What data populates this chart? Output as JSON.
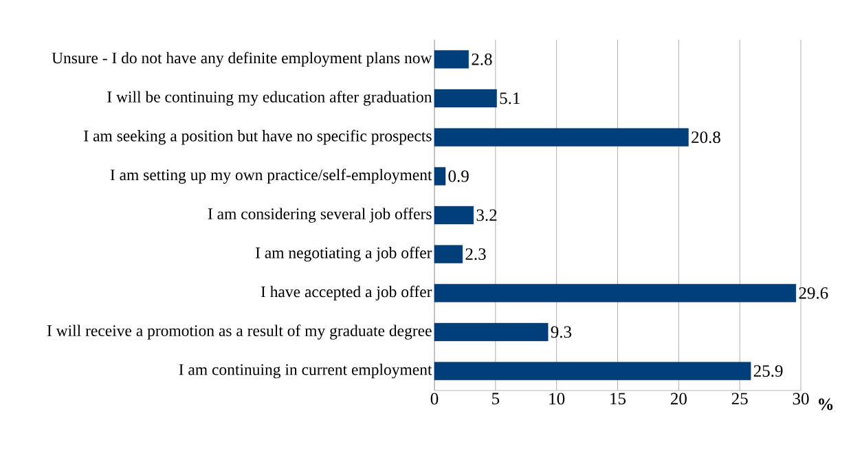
{
  "chart_data": {
    "type": "bar",
    "orientation": "horizontal",
    "xlabel": "%",
    "categories": [
      "Unsure - I do not have any definite employment plans now",
      "I will be continuing my education after graduation",
      "I am seeking a position but have no specific prospects",
      "I am setting up my own practice/self-employment",
      "I am considering several job offers",
      "I am negotiating a job offer",
      "I have accepted a job offer",
      "I will receive a promotion as a result of my graduate degree",
      "I am continuing in current employment"
    ],
    "values": [
      2.8,
      5.1,
      20.8,
      0.9,
      3.2,
      2.3,
      29.6,
      9.3,
      25.9
    ],
    "color": "#003f7a",
    "xlim": [
      0,
      30
    ],
    "xticks": [
      0,
      5,
      10,
      15,
      20,
      25,
      30
    ],
    "grid": "x",
    "data_labels": true
  }
}
